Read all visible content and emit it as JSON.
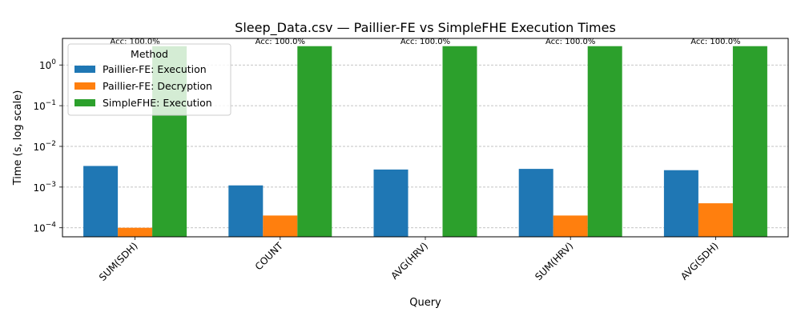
{
  "chart_data": {
    "type": "bar",
    "title": "Sleep_Data.csv — Paillier-FE vs SimpleFHE Execution Times",
    "xlabel": "Query",
    "ylabel": "Time (s, log scale)",
    "yscale": "log",
    "ylim": [
      6e-05,
      4.5
    ],
    "yticks": [
      {
        "value": 0.0001,
        "base": "10",
        "exp": "−4"
      },
      {
        "value": 0.001,
        "base": "10",
        "exp": "−3"
      },
      {
        "value": 0.01,
        "base": "10",
        "exp": "−2"
      },
      {
        "value": 0.1,
        "base": "10",
        "exp": "−1"
      },
      {
        "value": 1,
        "base": "10",
        "exp": "0"
      }
    ],
    "grid": "y-dashed",
    "categories": [
      "SUM(SDH)",
      "COUNT",
      "AVG(HRV)",
      "SUM(HRV)",
      "AVG(SDH)"
    ],
    "series": [
      {
        "name": "Paillier-FE: Execution",
        "color": "#1f77b4",
        "values": [
          0.0033,
          0.0011,
          0.0027,
          0.0028,
          0.0026
        ]
      },
      {
        "name": "Paillier-FE: Decryption",
        "color": "#ff7f0e",
        "values": [
          0.0001,
          0.0002,
          6e-05,
          0.0002,
          0.0004
        ]
      },
      {
        "name": "SimpleFHE: Execution",
        "color": "#2ca02c",
        "values": [
          2.9,
          2.9,
          2.9,
          2.9,
          2.9
        ]
      }
    ],
    "annotations": [
      "Acc: 100.0%",
      "Acc: 100.0%",
      "Acc: 100.0%",
      "Acc: 100.0%",
      "Acc: 100.0%"
    ],
    "legend": {
      "title": "Method",
      "placement": "top-left"
    }
  }
}
